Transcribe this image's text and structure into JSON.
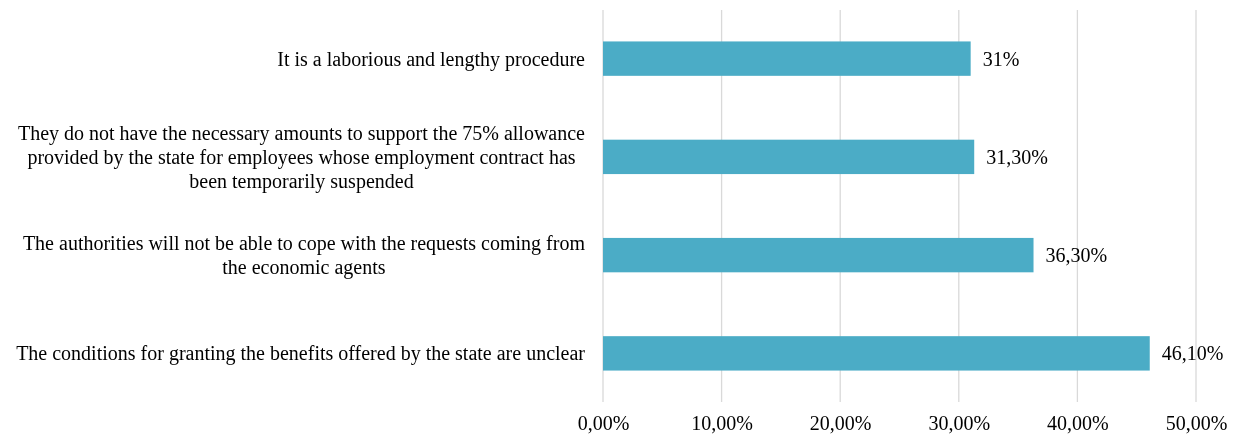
{
  "chart_data": {
    "type": "bar",
    "orientation": "horizontal",
    "categories": [
      "It is a laborious and lengthy procedure",
      "They do not have the necessary amounts to support the 75% allowance provided by the state for employees whose employment contract has been temporarily suspended",
      "The authorities will not be able to cope with the requests coming from the economic agents",
      "The conditions for granting the benefits offered by the state are unclear"
    ],
    "values": [
      31,
      31.3,
      36.3,
      46.1
    ],
    "value_labels": [
      "31%",
      "31,30%",
      "36,30%",
      "46,10%"
    ],
    "color": "#4bacc6",
    "xlim": [
      0,
      50
    ],
    "xticks": [
      {
        "value": 0,
        "label": "0,00%"
      },
      {
        "value": 10,
        "label": "10,00%"
      },
      {
        "value": 20,
        "label": "20,00%"
      },
      {
        "value": 30,
        "label": "30,00%"
      },
      {
        "value": 40,
        "label": "40,00%"
      },
      {
        "value": 50,
        "label": "50,00%"
      }
    ],
    "grid": "x"
  }
}
